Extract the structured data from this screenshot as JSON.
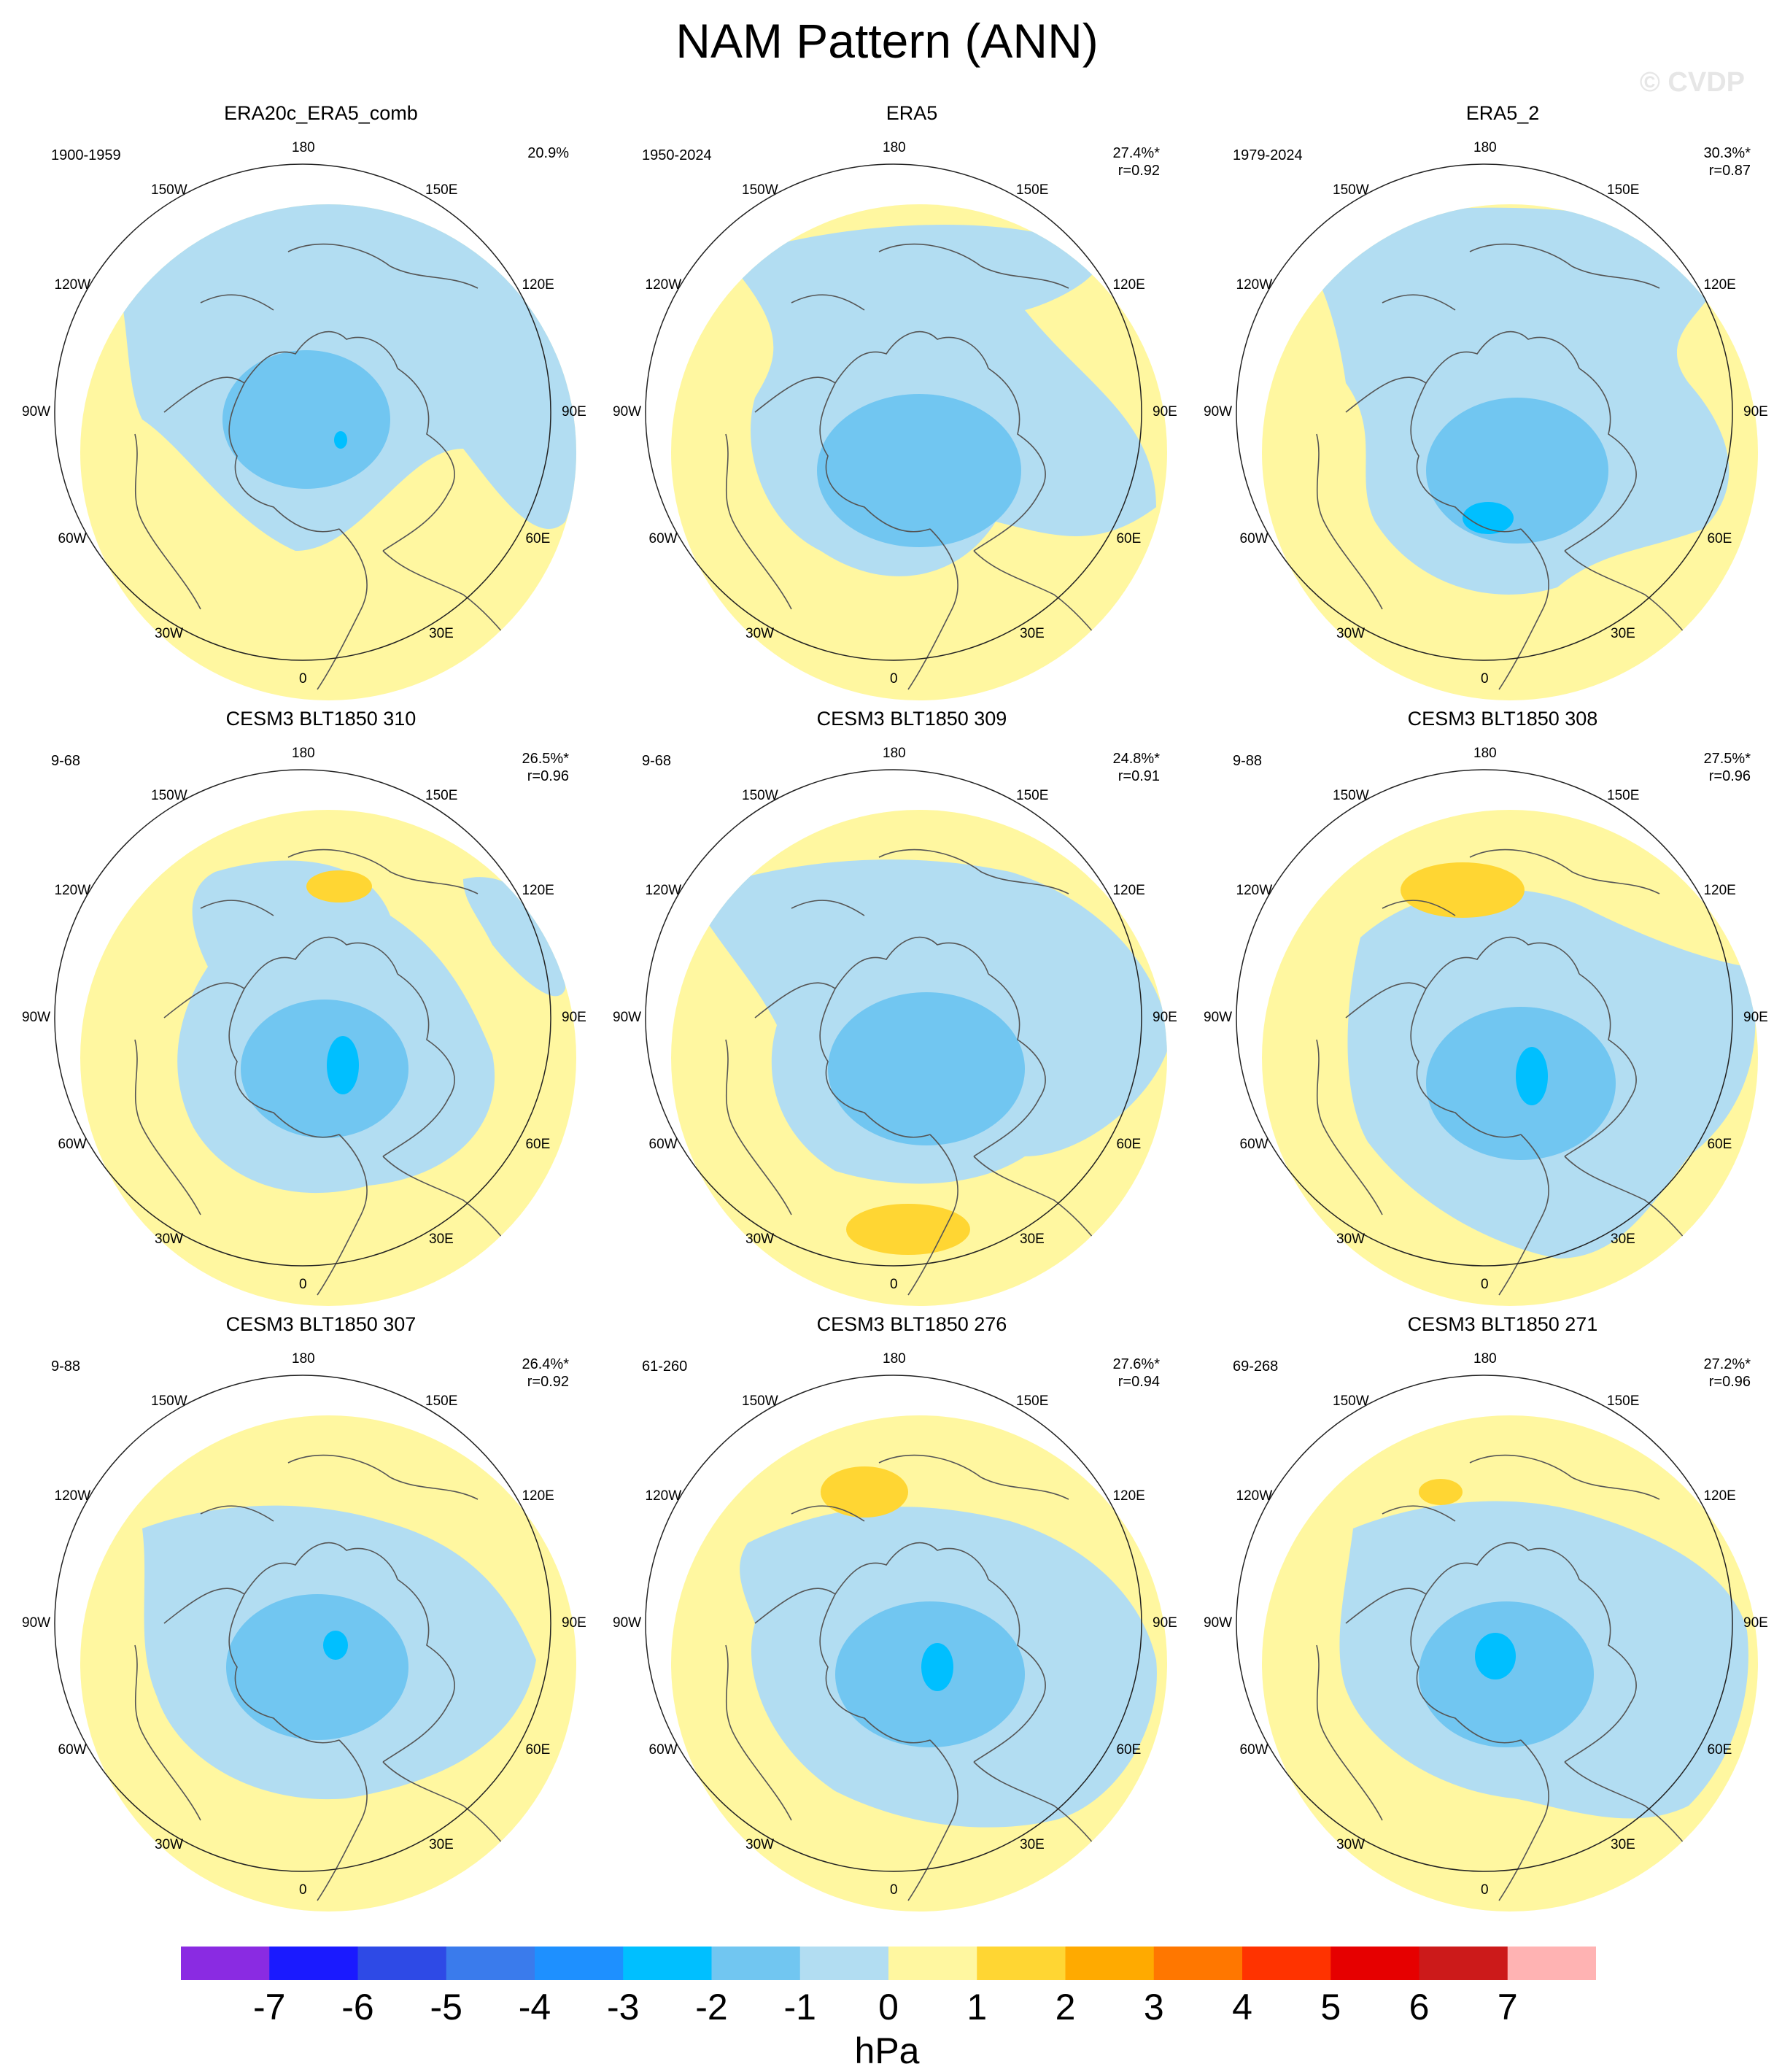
{
  "figure": {
    "title": "NAM Pattern (ANN)",
    "watermark": "© CVDP",
    "units": "hPa"
  },
  "longitude_labels": [
    "180",
    "150E",
    "120E",
    "90E",
    "60E",
    "30E",
    "0",
    "30W",
    "60W",
    "90W",
    "120W",
    "150W"
  ],
  "panels": [
    {
      "title": "ERA20c_ERA5_comb",
      "period": "1900-1959",
      "variance": "20.9%",
      "corr": ""
    },
    {
      "title": "ERA5",
      "period": "1950-2024",
      "variance": "27.4%*",
      "corr": "r=0.92"
    },
    {
      "title": "ERA5_2",
      "period": "1979-2024",
      "variance": "30.3%*",
      "corr": "r=0.87"
    },
    {
      "title": "CESM3 BLT1850 310",
      "period": "9-68",
      "variance": "26.5%*",
      "corr": "r=0.96"
    },
    {
      "title": "CESM3 BLT1850 309",
      "period": "9-68",
      "variance": "24.8%*",
      "corr": "r=0.91"
    },
    {
      "title": "CESM3 BLT1850 308",
      "period": "9-88",
      "variance": "27.5%*",
      "corr": "r=0.96"
    },
    {
      "title": "CESM3 BLT1850 307",
      "period": "9-88",
      "variance": "26.4%*",
      "corr": "r=0.92"
    },
    {
      "title": "CESM3 BLT1850 276",
      "period": "61-260",
      "variance": "27.6%*",
      "corr": "r=0.94"
    },
    {
      "title": "CESM3 BLT1850 271",
      "period": "69-268",
      "variance": "27.2%*",
      "corr": "r=0.96"
    }
  ],
  "colorbar": {
    "labels": [
      "-7",
      "-6",
      "-5",
      "-4",
      "-3",
      "-2",
      "-1",
      "0",
      "1",
      "2",
      "3",
      "4",
      "5",
      "6",
      "7"
    ],
    "colors": [
      "#8a2be2",
      "#1a1aff",
      "#2e4ae6",
      "#3a7bec",
      "#1e90ff",
      "#00bfff",
      "#71c6f1",
      "#b2ddf2",
      "#fff7a0",
      "#ffd633",
      "#ffaa00",
      "#ff7700",
      "#ff3300",
      "#e60000",
      "#cc1a1a",
      "#ffb3b3"
    ]
  }
}
